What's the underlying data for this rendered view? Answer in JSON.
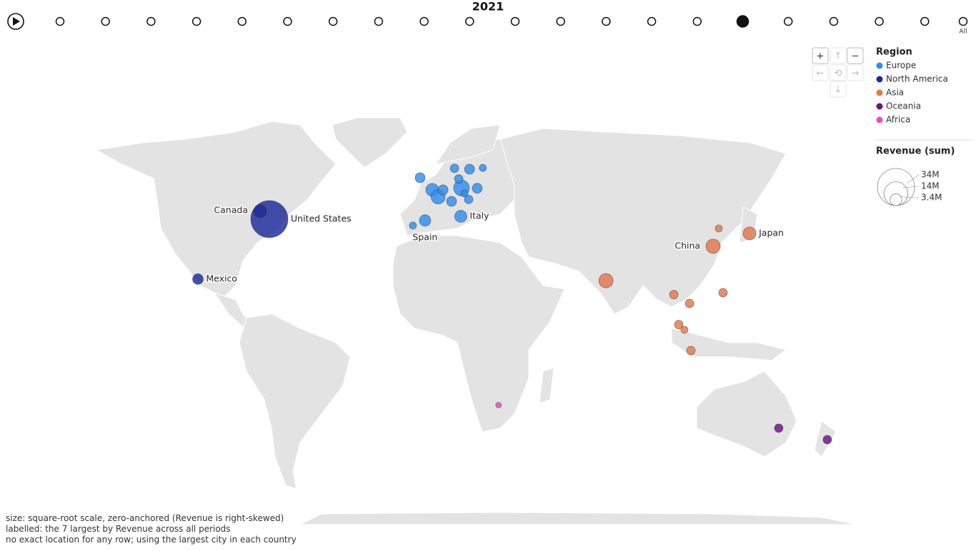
{
  "timeline": {
    "current": "2021",
    "all_label": "All"
  },
  "controls": [
    "+",
    "↑",
    "−",
    "←",
    "⟲",
    "→",
    "↓"
  ],
  "legend": {
    "title": "Region",
    "items": [
      {
        "name": "Europe",
        "color": "#2f8df0"
      },
      {
        "name": "North America",
        "color": "#1c2a9a"
      },
      {
        "name": "Asia",
        "color": "#e3784b"
      },
      {
        "name": "Oceania",
        "color": "#6d0f8c"
      },
      {
        "name": "Africa",
        "color": "#e34fbd"
      }
    ]
  },
  "size_legend": {
    "title": "Revenue (sum)",
    "items": [
      {
        "value": 34000000,
        "label": "34M"
      },
      {
        "value": 14000000,
        "label": "14M"
      },
      {
        "value": 3400000,
        "label": "3.4M"
      }
    ]
  },
  "bubbles": [
    {
      "region": "North America",
      "label": "United States",
      "lon": -74.0,
      "lat": 40.7,
      "revenue": 34000000
    },
    {
      "region": "North America",
      "label": "Canada",
      "lon": -78.1,
      "lat": 43.0,
      "revenue": 4100000
    },
    {
      "region": "North America",
      "label": "Mexico",
      "lon": -105.8,
      "lat": 21.0,
      "revenue": 2800000
    },
    {
      "region": "Europe",
      "label": "Italy",
      "lon": 11.2,
      "lat": 41.5,
      "revenue": 3600000
    },
    {
      "region": "Europe",
      "label": "Spain",
      "lon": -4.7,
      "lat": 40.3,
      "revenue": 3200000
    },
    {
      "region": "Europe",
      "lon": -10.1,
      "lat": 38.8,
      "revenue": 1260000
    },
    {
      "region": "Europe",
      "lon": -6.9,
      "lat": 51.7,
      "revenue": 2460000
    },
    {
      "region": "Europe",
      "lon": -1.5,
      "lat": 48.7,
      "revenue": 4100000
    },
    {
      "region": "Europe",
      "lon": 1.1,
      "lat": 46.9,
      "revenue": 5000000
    },
    {
      "region": "Europe",
      "lon": 3.3,
      "lat": 48.7,
      "revenue": 2460000
    },
    {
      "region": "Europe",
      "lon": 11.5,
      "lat": 49.2,
      "revenue": 6100000
    },
    {
      "region": "Europe",
      "lon": 10.3,
      "lat": 51.4,
      "revenue": 1810000
    },
    {
      "region": "Europe",
      "lon": 8.4,
      "lat": 53.9,
      "revenue": 1810000
    },
    {
      "region": "Europe",
      "lon": 15.1,
      "lat": 53.7,
      "revenue": 2460000
    },
    {
      "region": "Europe",
      "lon": 21.0,
      "lat": 54.0,
      "revenue": 1260000
    },
    {
      "region": "Europe",
      "lon": 18.5,
      "lat": 49.1,
      "revenue": 2460000
    },
    {
      "region": "Europe",
      "lon": 12.8,
      "lat": 47.8,
      "revenue": 1260000
    },
    {
      "region": "Europe",
      "lon": 14.7,
      "lat": 46.2,
      "revenue": 1810000
    },
    {
      "region": "Europe",
      "lon": 7.1,
      "lat": 45.7,
      "revenue": 2460000
    },
    {
      "region": "Asia",
      "label": "China",
      "lon": 123.5,
      "lat": 32.3,
      "revenue": 5000000
    },
    {
      "region": "Asia",
      "label": "Japan",
      "lon": 139.7,
      "lat": 36.4,
      "revenue": 4100000
    },
    {
      "region": "Asia",
      "lon": 126.0,
      "lat": 37.9,
      "revenue": 1260000
    },
    {
      "region": "Asia",
      "lon": 75.8,
      "lat": 20.4,
      "revenue": 5000000
    },
    {
      "region": "Asia",
      "lon": 106.0,
      "lat": 15.3,
      "revenue": 1810000
    },
    {
      "region": "Asia",
      "lon": 113.0,
      "lat": 12.0,
      "revenue": 1810000
    },
    {
      "region": "Asia",
      "lon": 127.9,
      "lat": 16.0,
      "revenue": 1810000
    },
    {
      "region": "Asia",
      "lon": 108.2,
      "lat": 3.9,
      "revenue": 1810000
    },
    {
      "region": "Asia",
      "lon": 110.7,
      "lat": 1.9,
      "revenue": 1260000
    },
    {
      "region": "Asia",
      "lon": 113.6,
      "lat": -6.1,
      "revenue": 1810000
    },
    {
      "region": "Oceania",
      "lon": 152.7,
      "lat": -33.9,
      "revenue": 1810000
    },
    {
      "region": "Oceania",
      "lon": 174.3,
      "lat": -37.5,
      "revenue": 1810000
    },
    {
      "region": "Africa",
      "lon": 28.0,
      "lat": -26.2,
      "revenue": 800000
    }
  ],
  "notes": [
    "size: square-root scale, zero-anchored (Revenue is right-skewed)",
    "labelled: the 7 largest by Revenue across all periods",
    "no exact location for any row; using the largest city in each country"
  ]
}
